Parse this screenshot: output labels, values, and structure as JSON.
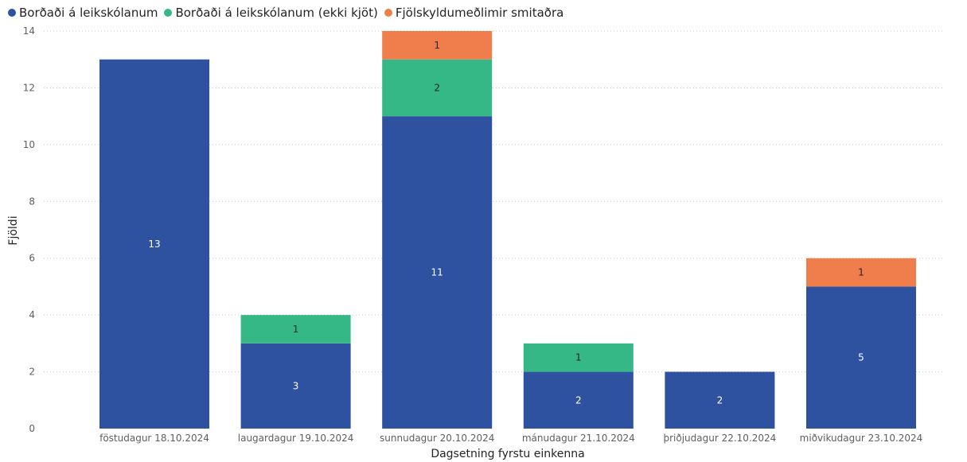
{
  "chart_data": {
    "type": "bar",
    "stacked": true,
    "categories": [
      "föstudagur 18.10.2024",
      "laugardagur 19.10.2024",
      "sunnudagur 20.10.2024",
      "mánudagur 21.10.2024",
      "þriðjudagur 22.10.2024",
      "miðvikudagur 23.10.2024"
    ],
    "series": [
      {
        "name": "Borðaði á leikskólanum",
        "color": "#2E52A0",
        "values": [
          13,
          3,
          11,
          2,
          2,
          5
        ]
      },
      {
        "name": "Borðaði á leikskólanum (ekki kjöt)",
        "color": "#35B886",
        "values": [
          0,
          1,
          2,
          1,
          0,
          0
        ]
      },
      {
        "name": "Fjölskyldumeðlimir smitaðra",
        "color": "#EF7E4C",
        "values": [
          0,
          0,
          1,
          0,
          0,
          1
        ]
      }
    ],
    "xlabel": "Dagsetning fyrstu einkenna",
    "ylabel": "Fjöldi",
    "ylim": [
      0,
      14
    ],
    "yticks": [
      0,
      2,
      4,
      6,
      8,
      10,
      12,
      14
    ],
    "grid": true,
    "legend_position": "top-left"
  }
}
